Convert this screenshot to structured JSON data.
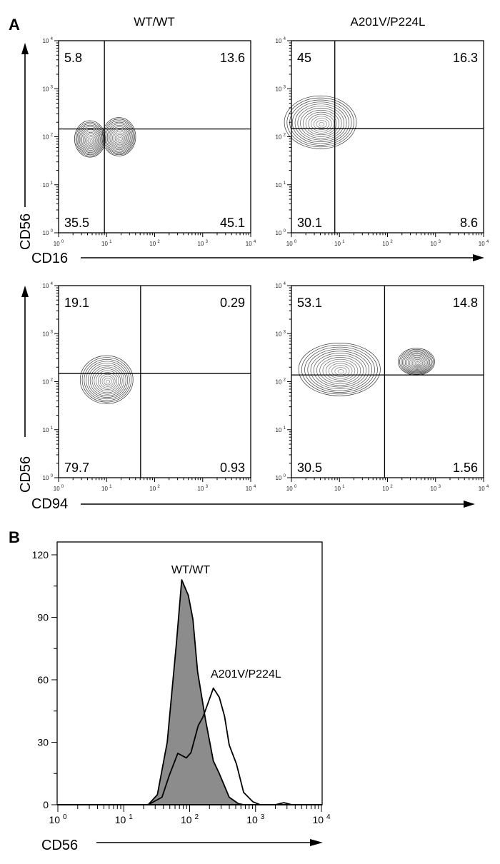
{
  "panel_labels": {
    "a": "A",
    "b": "B"
  },
  "columns": [
    "WT/WT",
    "A201V/P224L"
  ],
  "chart_data": [
    {
      "type": "contour",
      "id": "a-cd16-wt",
      "title": "WT/WT",
      "xlabel": "CD16",
      "ylabel": "CD56",
      "xscale": "log",
      "yscale": "log",
      "xlim": [
        1,
        10000
      ],
      "ylim": [
        1,
        10000
      ],
      "tick_labels": [
        "10^0",
        "10^1",
        "10^2",
        "10^3",
        "10^4"
      ],
      "gate": {
        "x": 9,
        "y": 145
      },
      "quadrants": {
        "ul": "5.8",
        "ur": "13.6",
        "ll": "35.5",
        "lr": "45.1"
      },
      "populations": [
        {
          "x": 4.5,
          "y": 90,
          "sx_dec": 0.32,
          "sy_dec": 0.38
        },
        {
          "x": 18,
          "y": 100,
          "sx_dec": 0.35,
          "sy_dec": 0.4
        }
      ]
    },
    {
      "type": "contour",
      "id": "a-cd16-mut",
      "title": "A201V/P224L",
      "xlabel": "CD16",
      "ylabel": "CD56",
      "xscale": "log",
      "yscale": "log",
      "xlim": [
        1,
        10000
      ],
      "ylim": [
        1,
        10000
      ],
      "tick_labels": [
        "10^0",
        "10^1",
        "10^2",
        "10^3",
        "10^4"
      ],
      "gate": {
        "x": 8,
        "y": 148
      },
      "quadrants": {
        "ul": "45",
        "ur": "16.3",
        "ll": "30.1",
        "lr": "8.6"
      },
      "populations": [
        {
          "x": 4,
          "y": 200,
          "sx_dec": 0.75,
          "sy_dec": 0.55
        }
      ]
    },
    {
      "type": "contour",
      "id": "a-cd94-wt",
      "title": "WT/WT",
      "xlabel": "CD94",
      "ylabel": "CD56",
      "xscale": "log",
      "yscale": "log",
      "xlim": [
        1,
        10000
      ],
      "ylim": [
        1,
        10000
      ],
      "tick_labels": [
        "10^0",
        "10^1",
        "10^2",
        "10^3",
        "10^4"
      ],
      "gate": {
        "x": 51,
        "y": 148
      },
      "quadrants": {
        "ul": "19.1",
        "ur": "0.29",
        "ll": "79.7",
        "lr": "0.93"
      },
      "populations": [
        {
          "x": 10,
          "y": 110,
          "sx_dec": 0.55,
          "sy_dec": 0.5
        }
      ]
    },
    {
      "type": "contour",
      "id": "a-cd94-mut",
      "title": "A201V/P224L",
      "xlabel": "CD94",
      "ylabel": "CD56",
      "xscale": "log",
      "yscale": "log",
      "xlim": [
        1,
        10000
      ],
      "ylim": [
        1,
        10000
      ],
      "tick_labels": [
        "10^0",
        "10^1",
        "10^2",
        "10^3",
        "10^4"
      ],
      "gate": {
        "x": 87,
        "y": 138
      },
      "quadrants": {
        "ul": "53.1",
        "ur": "14.8",
        "ll": "30.5",
        "lr": "1.56"
      },
      "populations": [
        {
          "x": 10,
          "y": 180,
          "sx_dec": 0.85,
          "sy_dec": 0.55
        },
        {
          "x": 400,
          "y": 260,
          "sx_dec": 0.38,
          "sy_dec": 0.28
        }
      ]
    },
    {
      "type": "area",
      "id": "b-histogram",
      "xlabel": "CD56",
      "xscale": "log",
      "xlim": [
        1,
        10000
      ],
      "ylim": [
        0,
        120
      ],
      "yticks": [
        "0",
        "30",
        "60",
        "90",
        "120"
      ],
      "tick_labels": [
        "10^0",
        "10^1",
        "10^2",
        "10^3",
        "10^4"
      ],
      "series": [
        {
          "name": "WT/WT",
          "fill": "#8c8c8c",
          "x_log10": [
            1.37,
            1.51,
            1.66,
            1.8,
            1.88,
            1.98,
            2.05,
            2.12,
            2.24,
            2.36,
            2.45,
            2.6,
            2.74,
            2.82
          ],
          "values": [
            0,
            4.8,
            30,
            78,
            108,
            100.5,
            89,
            64,
            41,
            21,
            15,
            3.6,
            0.5,
            0
          ]
        },
        {
          "name": "A201V/P224L",
          "fill": "none",
          "x_log10": [
            1.37,
            1.58,
            1.69,
            1.82,
            1.95,
            2.02,
            2.13,
            2.2,
            2.27,
            2.36,
            2.45,
            2.53,
            2.6,
            2.71,
            2.82,
            2.96,
            3.07,
            3.3,
            3.43,
            3.55
          ],
          "values": [
            0,
            3.6,
            14,
            24.7,
            22.5,
            25,
            38,
            42,
            48,
            56,
            51.6,
            42.4,
            28.7,
            19.6,
            5.9,
            1.4,
            0,
            0,
            1,
            0
          ]
        }
      ]
    }
  ]
}
